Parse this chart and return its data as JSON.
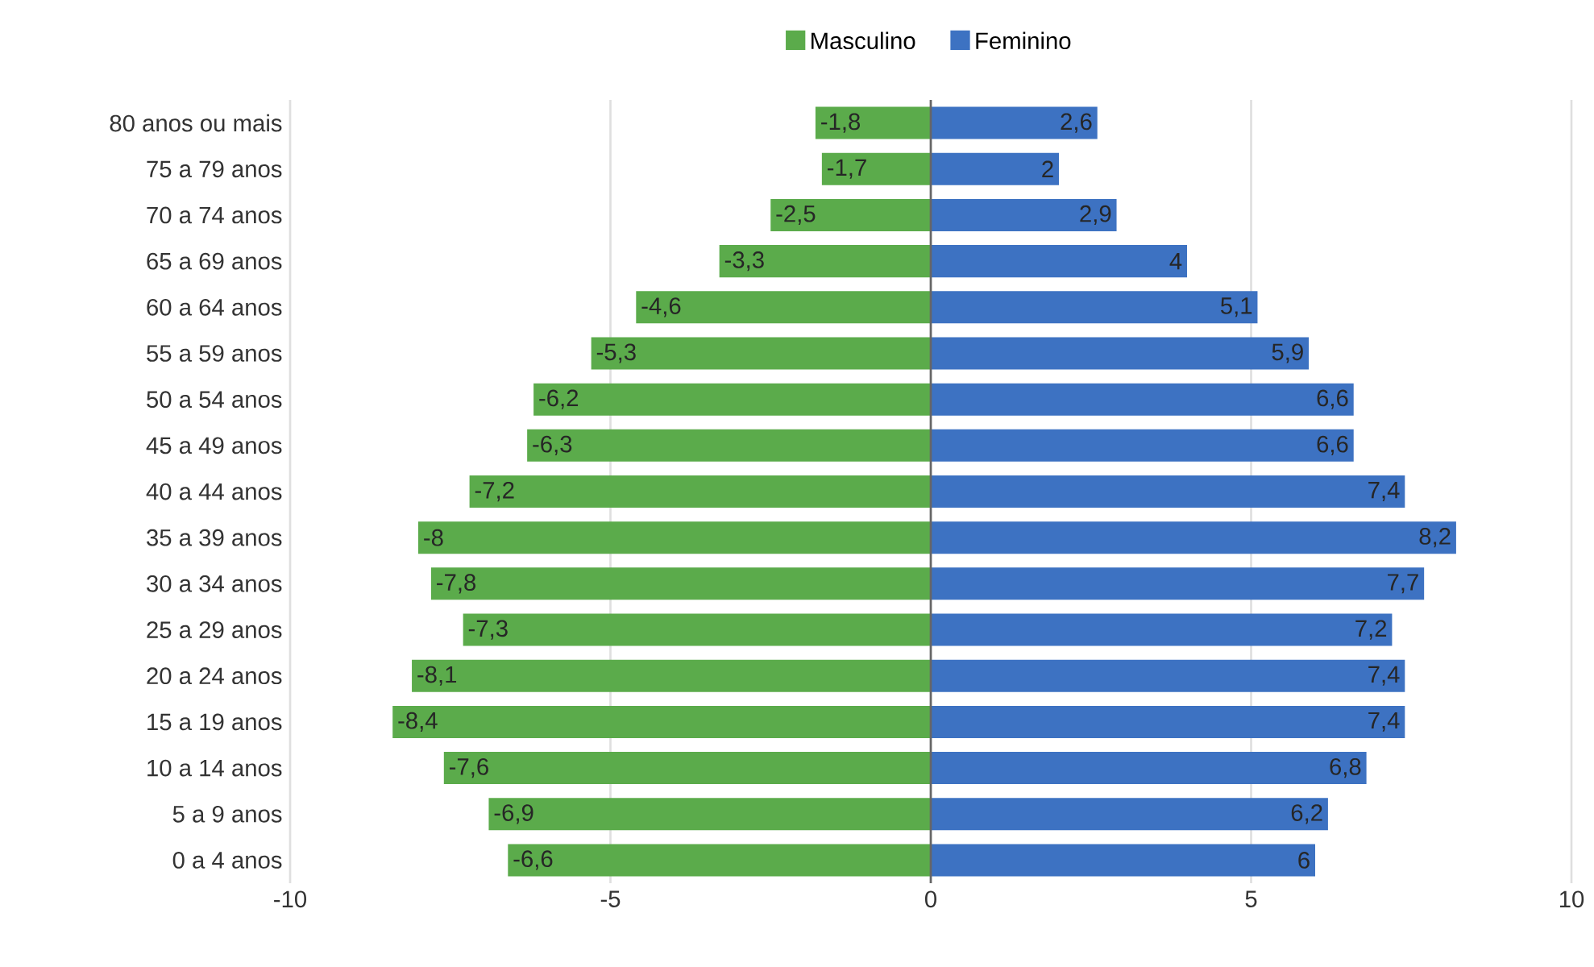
{
  "chart_data": {
    "type": "bar",
    "orientation": "horizontal",
    "categories": [
      "80 anos ou mais",
      "75 a 79 anos",
      "70 a 74 anos",
      "65 a 69 anos",
      "60 a 64 anos",
      "55 a 59 anos",
      "50 a 54 anos",
      "45 a 49 anos",
      "40 a 44 anos",
      "35 a 39 anos",
      "30 a 34 anos",
      "25 a 29 anos",
      "20 a 24 anos",
      "15 a 19 anos",
      "10 a 14 anos",
      "5 a 9 anos",
      "0 a 4 anos"
    ],
    "series": [
      {
        "name": "Masculino",
        "color": "#5bab4b",
        "values": [
          -1.8,
          -1.7,
          -2.5,
          -3.3,
          -4.6,
          -5.3,
          -6.2,
          -6.3,
          -7.2,
          -8,
          -7.8,
          -7.3,
          -8.1,
          -8.4,
          -7.6,
          -6.9,
          -6.6
        ],
        "value_labels": [
          "-1,8",
          "-1,7",
          "-2,5",
          "-3,3",
          "-4,6",
          "-5,3",
          "-6,2",
          "-6,3",
          "-7,2",
          "-8",
          "-7,8",
          "-7,3",
          "-8,1",
          "-8,4",
          "-7,6",
          "-6,9",
          "-6,6"
        ]
      },
      {
        "name": "Feminino",
        "color": "#3d72c2",
        "values": [
          2.6,
          2,
          2.9,
          4,
          5.1,
          5.9,
          6.6,
          6.6,
          7.4,
          8.2,
          7.7,
          7.2,
          7.4,
          7.4,
          6.8,
          6.2,
          6
        ],
        "value_labels": [
          "2,6",
          "2",
          "2,9",
          "4",
          "5,1",
          "5,9",
          "6,6",
          "6,6",
          "7,4",
          "8,2",
          "7,7",
          "7,2",
          "7,4",
          "7,4",
          "6,8",
          "6,2",
          "6"
        ]
      }
    ],
    "stacked": true,
    "xlim": [
      -10,
      10
    ],
    "xticks": [
      -10,
      -5,
      0,
      5,
      10
    ],
    "grid": "x",
    "legend": "top"
  }
}
